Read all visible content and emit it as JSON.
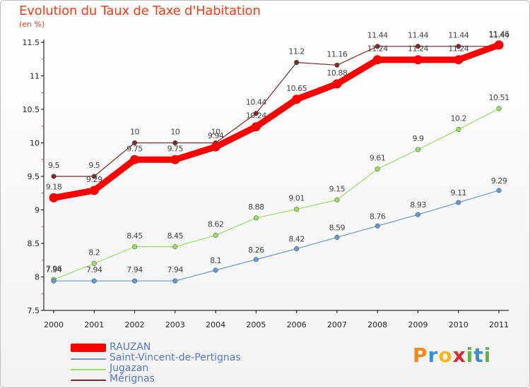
{
  "title": "Evolution du Taux de Taxe d'Habitation",
  "unit_label": "(en %)",
  "brand": "Proxiti",
  "chart_data": {
    "type": "line",
    "title": "Evolution du Taux de Taxe d'Habitation",
    "ylabel": "(en %)",
    "xlabel": "",
    "categories": [
      "2000",
      "2001",
      "2002",
      "2003",
      "2004",
      "2005",
      "2006",
      "2007",
      "2008",
      "2009",
      "2010",
      "2011"
    ],
    "ylim": [
      7.5,
      11.5
    ],
    "yticks": [
      "7.5",
      "8",
      "8.5",
      "9",
      "9.5",
      "10",
      "10.5",
      "11",
      "11.5"
    ],
    "grid": false,
    "legend_position": "bottom-left",
    "series": [
      {
        "name": "RAUZAN",
        "color": "#ff0000",
        "values": [
          9.18,
          9.29,
          9.75,
          9.75,
          9.94,
          10.24,
          10.65,
          10.88,
          11.24,
          11.24,
          11.24,
          11.46
        ],
        "labels": [
          "9.18",
          "9.29",
          "9.75",
          "9.75",
          "9.94",
          "10.24",
          "10.65",
          "10.88",
          "11.24",
          "11.24",
          "11.24",
          "11.46"
        ]
      },
      {
        "name": "Saint-Vincent-de-Pertignas",
        "color": "#6699cc",
        "values": [
          7.94,
          7.94,
          7.94,
          7.94,
          8.1,
          8.26,
          8.42,
          8.59,
          8.76,
          8.93,
          9.11,
          9.29
        ],
        "labels": [
          "7.94",
          "7.94",
          "7.94",
          "7.94",
          "8.1",
          "8.26",
          "8.42",
          "8.59",
          "8.76",
          "8.93",
          "9.11",
          "9.29"
        ]
      },
      {
        "name": "Jugazan",
        "color": "#99dd66",
        "values": [
          7.96,
          8.2,
          8.45,
          8.45,
          8.62,
          8.88,
          9.01,
          9.15,
          9.61,
          9.9,
          10.2,
          10.51
        ],
        "labels": [
          "7.96",
          "8.2",
          "8.45",
          "8.45",
          "8.62",
          "8.88",
          "9.01",
          "9.15",
          "9.61",
          "9.9",
          "10.2",
          "10.51"
        ]
      },
      {
        "name": "Mérignas",
        "color": "#7a2b2b",
        "values": [
          9.5,
          9.5,
          10,
          10,
          10,
          10.44,
          11.2,
          11.16,
          11.44,
          11.44,
          11.44,
          11.44
        ],
        "labels": [
          "9.5",
          "9.5",
          "10",
          "10",
          "10",
          "10.44",
          "11.2",
          "11.16",
          "11.44",
          "11.44",
          "11.44",
          "11.44"
        ]
      }
    ]
  }
}
